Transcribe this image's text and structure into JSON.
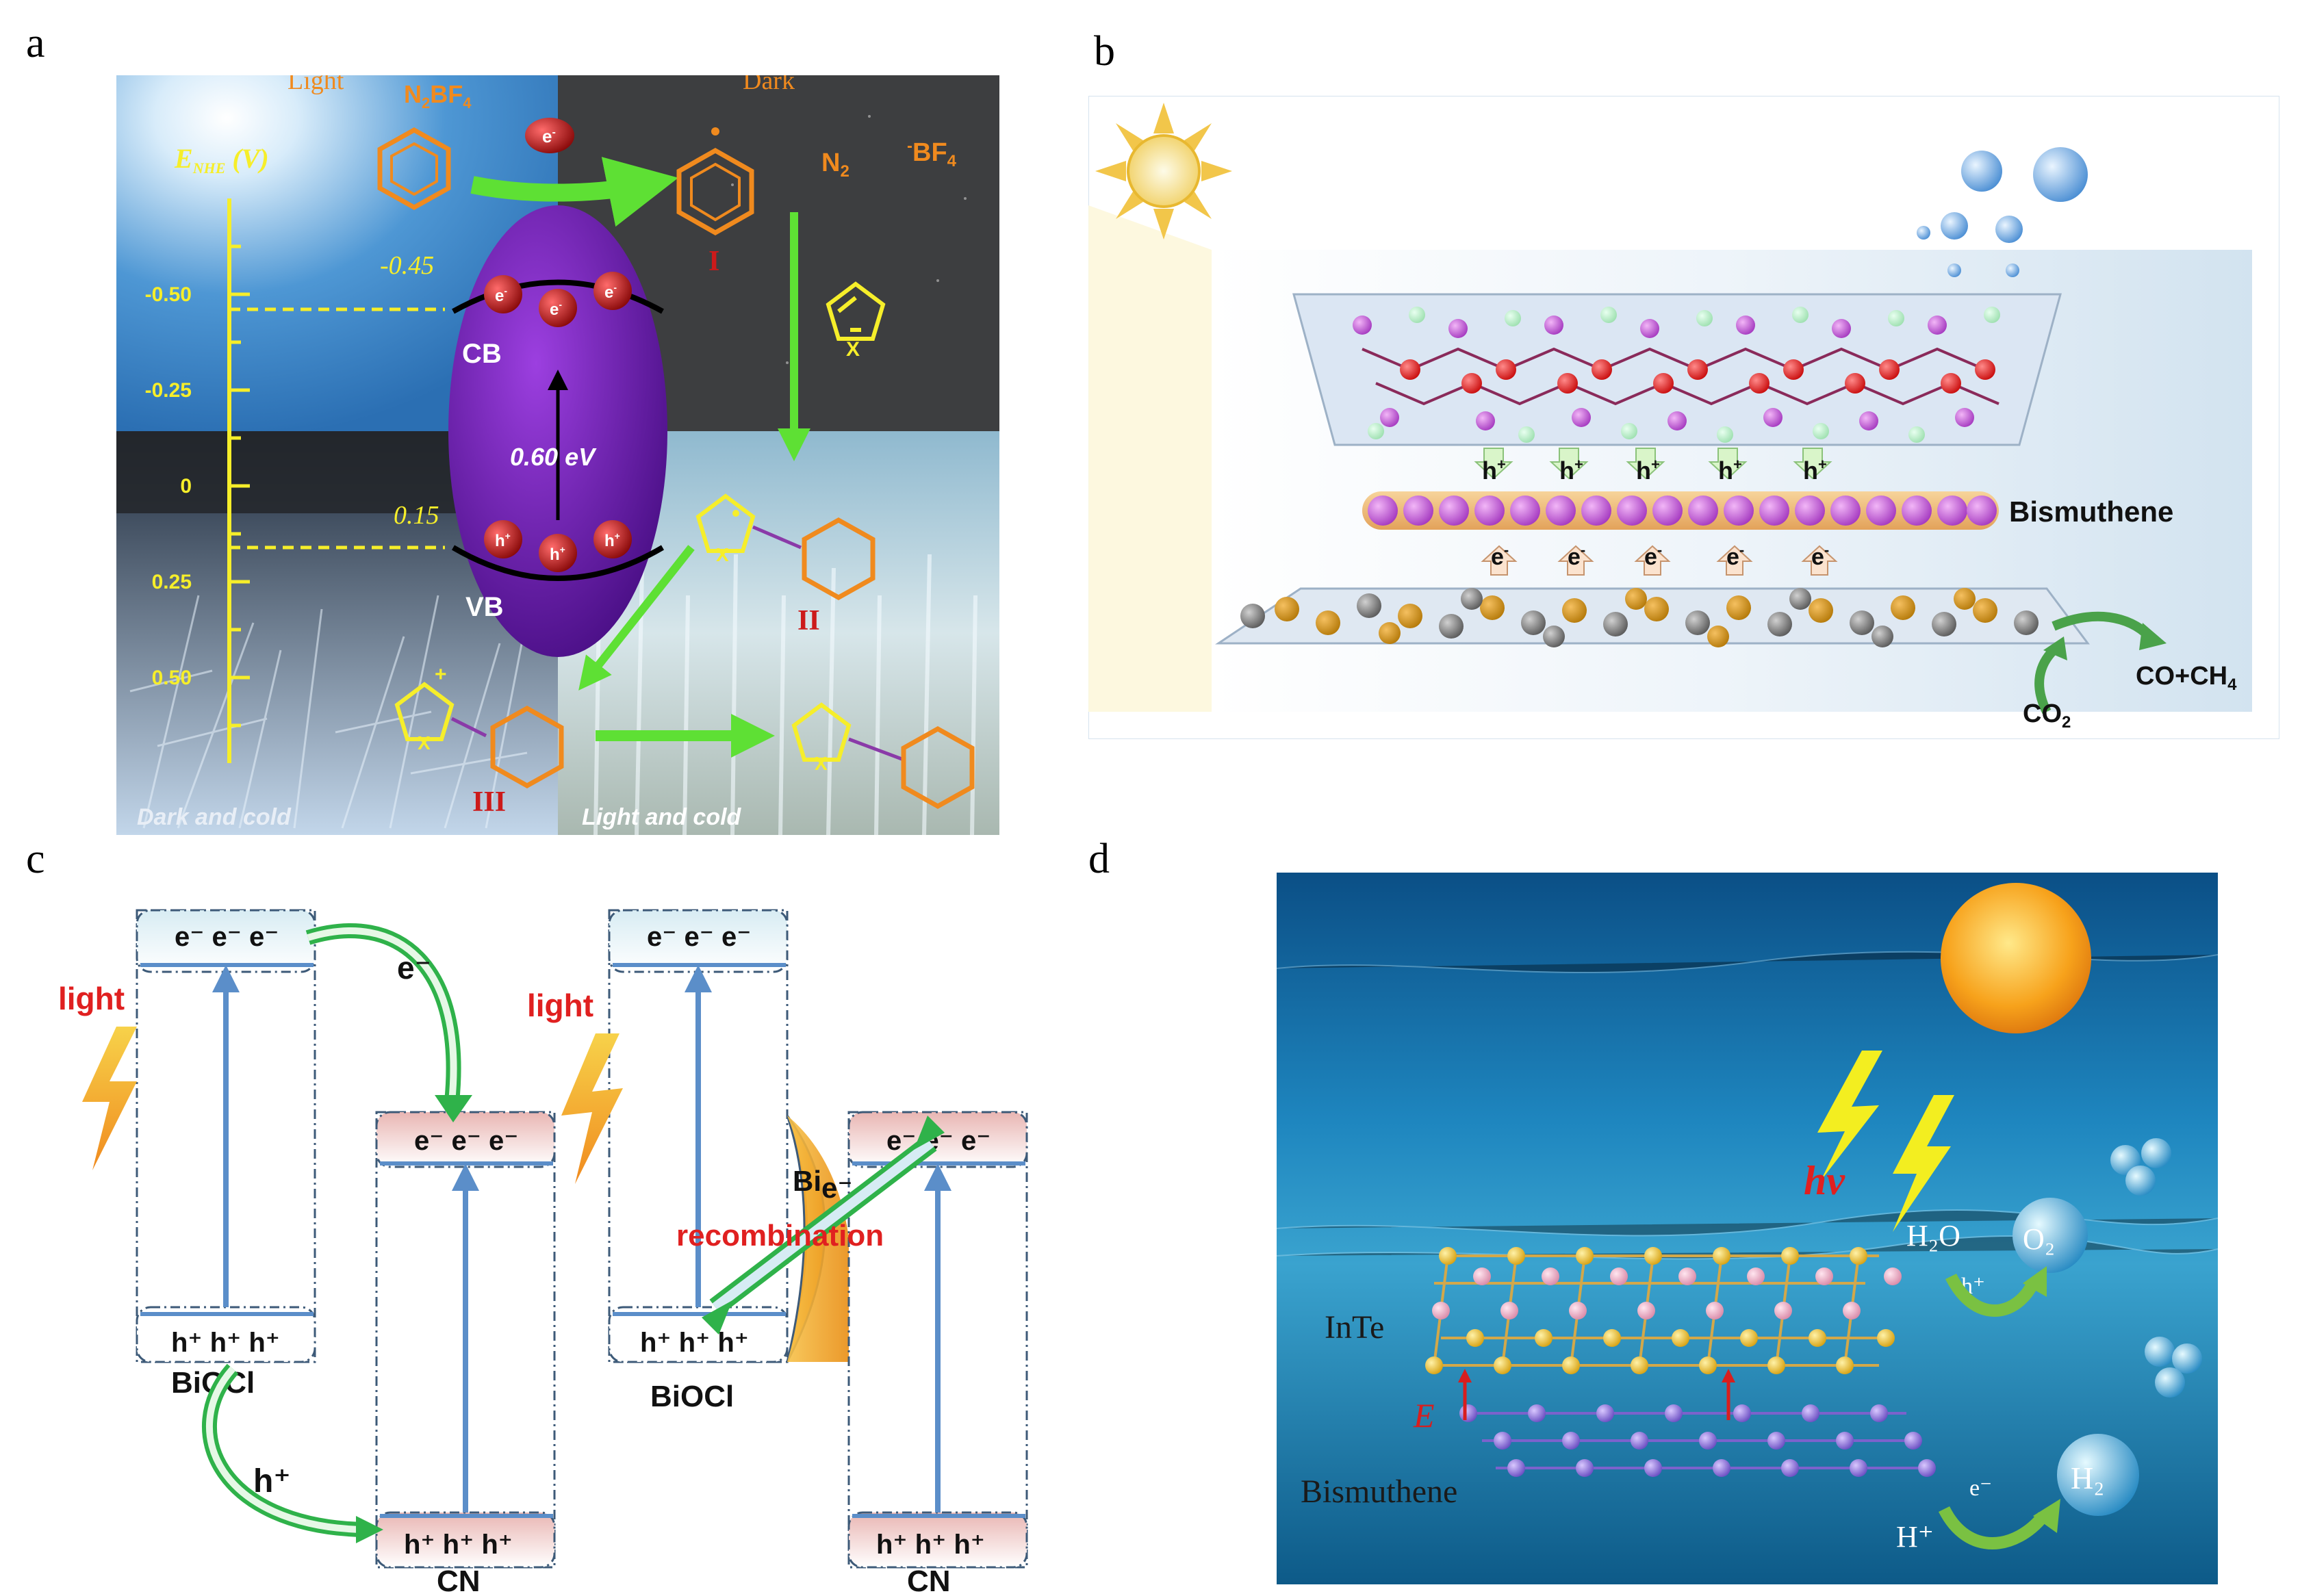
{
  "panel_letters": {
    "a": "a",
    "b": "b",
    "c": "c",
    "d": "d"
  },
  "panel_a": {
    "light_label": "Light",
    "dark_label": "Dark",
    "axis_symbol": "E",
    "axis_subscript": "NHE",
    "axis_unit": " (V)",
    "ticks": [
      "-0.50",
      "-0.25",
      "0",
      "0.25",
      "0.50"
    ],
    "cb_value": "-0.45",
    "vb_value": "0.15",
    "cb_label": "CB",
    "vb_label": "VB",
    "gap_label": "0.60 eV",
    "electron": "e",
    "hole": "h",
    "reagent_label": "N",
    "reagent_label_sub": "2",
    "reagent_label_rest": "BF",
    "reagent_label_sub2": "4",
    "n2": "N",
    "n2_sub": "2",
    "bf4": "BF",
    "bf4_sub": "4",
    "bf4_sup": "-",
    "heteroatom": "X",
    "int_I": "I",
    "int_II": "II",
    "int_III": "III",
    "corner_left": "Dark and cold",
    "corner_right": "Light and cold"
  },
  "panel_b": {
    "holes": [
      "h",
      "h",
      "h",
      "h",
      "h"
    ],
    "hole_sup": "+",
    "electrons": [
      "e",
      "e",
      "e",
      "e",
      "e"
    ],
    "electron_sup": "-",
    "layer_label": "Bismuthene",
    "co2": "CO",
    "co2_sub": "2",
    "product": "CO+CH",
    "product_sub": "4"
  },
  "panel_c": {
    "left": {
      "top_carriers": "e⁻ e⁻ e⁻",
      "bottom_carriers": "h⁺ h⁺ h⁺",
      "cn_top_carriers": "e⁻ e⁻ e⁻",
      "cn_bottom_carriers": "h⁺ h⁺ h⁺",
      "light": "light",
      "transfer_e": "e⁻",
      "transfer_h": "h⁺",
      "biocl": "BiOCl",
      "cn": "CN"
    },
    "right": {
      "top_carriers": "e⁻ e⁻ e⁻",
      "bottom_carriers": "h⁺ h⁺ h⁺",
      "cn_top_carriers": "e⁻ e⁻ e⁻",
      "cn_bottom_carriers": "h⁺ h⁺ h⁺",
      "light": "light",
      "bi": "Bi",
      "transfer_e": "e⁻",
      "recombination": "recombination",
      "biocl": "BiOCl",
      "cn": "CN"
    }
  },
  "panel_d": {
    "hv": "hν",
    "h2o": "H₂O",
    "o2": "O₂",
    "h2": "H₂",
    "hole": "h⁺",
    "electron": "e⁻",
    "proton": "H⁺",
    "inte": "InTe",
    "field": "E",
    "bismuthene": "Bismuthene"
  },
  "colors": {
    "orange": "#f08a1e",
    "yellow": "#f6ee2a",
    "green_arrow": "#5ee034",
    "purple": "#6a1aa8",
    "blue_line": "#5b8ec9",
    "red_text": "#e02020"
  }
}
